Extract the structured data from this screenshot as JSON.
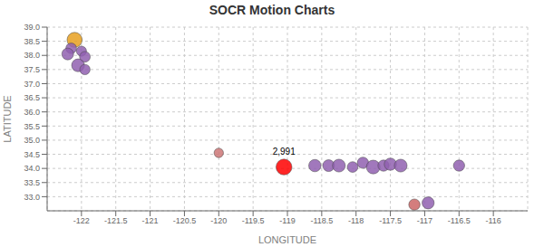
{
  "chart_data": {
    "type": "scatter",
    "title": "SOCR Motion Charts",
    "xlabel": "LONGITUDE",
    "ylabel": "LATITUDE",
    "xlim": [
      -122.5,
      -115.5
    ],
    "ylim": [
      32.5,
      39.0
    ],
    "xticks": [
      -122,
      -121.5,
      -121,
      -120.5,
      -120,
      -119.5,
      -119,
      -118.5,
      -118,
      -117.5,
      -117,
      -116.5,
      -116
    ],
    "yticks": [
      {
        "value": 33,
        "label": "33.0"
      },
      33.5,
      {
        "value": 34,
        "label": "34.0"
      },
      34.5,
      {
        "value": 35,
        "label": "35.0"
      },
      35.5,
      {
        "value": 36,
        "label": "36.0"
      },
      36.5,
      {
        "value": 37,
        "label": "37.0"
      },
      37.5,
      {
        "value": 38,
        "label": "38.0"
      },
      38.5,
      {
        "value": 39,
        "label": "39.0"
      }
    ],
    "grid": true,
    "x": [
      -122.1,
      -122.15,
      -122.2,
      -122.0,
      -121.95,
      -122.05,
      -121.95,
      -120.0,
      -119.05,
      -118.6,
      -118.4,
      -118.25,
      -118.05,
      -117.9,
      -117.75,
      -117.6,
      -117.5,
      -117.35,
      -117.15,
      -116.95,
      -116.5
    ],
    "values": [
      38.55,
      38.25,
      38.05,
      38.15,
      37.95,
      37.65,
      37.5,
      34.55,
      34.05,
      34.1,
      34.1,
      34.1,
      34.05,
      34.2,
      34.05,
      34.1,
      34.15,
      34.1,
      32.72,
      32.78,
      34.1
    ],
    "sizes": [
      180,
      90,
      110,
      80,
      90,
      130,
      85,
      70,
      200,
      120,
      110,
      130,
      90,
      100,
      150,
      100,
      120,
      130,
      100,
      115,
      100
    ],
    "colors": [
      "#e8a020",
      "#9060b0",
      "#9060b0",
      "#9060b0",
      "#9060b0",
      "#9060b0",
      "#9060b0",
      "#cc7777",
      "#ff0000",
      "#9060b0",
      "#9060b0",
      "#9060b0",
      "#9060b0",
      "#9060b0",
      "#9060b0",
      "#9060b0",
      "#9060b0",
      "#9060b0",
      "#cc6666",
      "#9060b0",
      "#9060b0"
    ],
    "annotations": [
      {
        "x": -119.05,
        "y": 34.32,
        "text": "2,991"
      }
    ]
  }
}
